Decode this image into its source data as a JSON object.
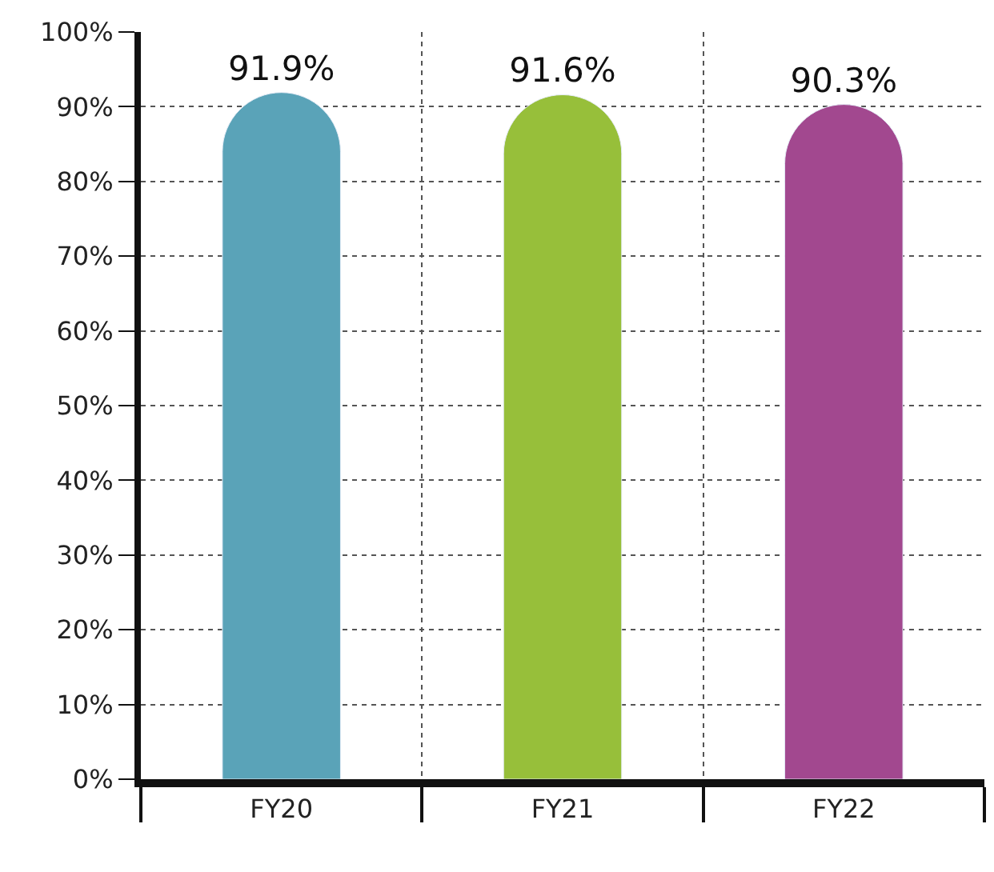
{
  "chart_data": {
    "type": "bar",
    "categories": [
      "FY20",
      "FY21",
      "FY22"
    ],
    "values": [
      91.9,
      91.6,
      90.3
    ],
    "colors": [
      "#5aa3b8",
      "#97bf3a",
      "#a2488f"
    ],
    "value_labels": [
      "91.9%",
      "91.6%",
      "90.3%"
    ],
    "ylim": [
      0,
      100
    ],
    "yticks": [
      {
        "value": 0,
        "label": "0%"
      },
      {
        "value": 10,
        "label": "10%"
      },
      {
        "value": 20,
        "label": "20%"
      },
      {
        "value": 30,
        "label": "30%"
      },
      {
        "value": 40,
        "label": "40%"
      },
      {
        "value": 50,
        "label": "50%"
      },
      {
        "value": 60,
        "label": "60%"
      },
      {
        "value": 70,
        "label": "70%"
      },
      {
        "value": 80,
        "label": "80%"
      },
      {
        "value": 90,
        "label": "90%"
      },
      {
        "value": 100,
        "label": "100%"
      }
    ],
    "grid": true
  }
}
